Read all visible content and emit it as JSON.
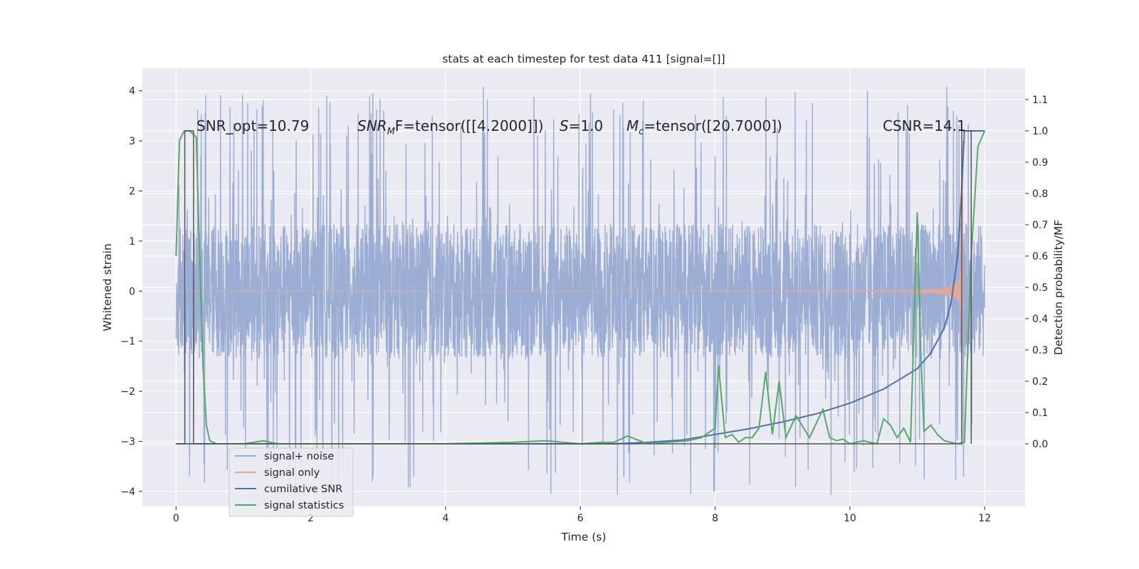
{
  "chart_data": {
    "type": "line",
    "title": "stats at each timestep for test data 411 [signal=[]]",
    "xlabel": "Time (s)",
    "ylabel": "Whitened strain",
    "ylabel_right": "Detection probability/MF",
    "xlim": [
      -0.5,
      12.6
    ],
    "ylim": [
      -4.3,
      4.45
    ],
    "ylim_right": [
      -0.2,
      1.2
    ],
    "x_ticks": [
      0,
      2,
      4,
      6,
      8,
      10,
      12
    ],
    "y_ticks": [
      -4,
      -3,
      -2,
      -1,
      0,
      1,
      2,
      3,
      4
    ],
    "y_ticks_right": [
      0.0,
      0.1,
      0.2,
      0.3,
      0.4,
      0.5,
      0.6,
      0.7,
      0.8,
      0.9,
      1.0,
      1.1
    ],
    "grid": true,
    "legend_position": "lower-left",
    "annotations": {
      "snr_opt": "SNR_opt=10.79",
      "snr_mf_label": "SNR",
      "snr_mf_sub": "M",
      "snr_mf_rest": "F=tensor([[4.2000]])",
      "s_label": "S",
      "s_rest": "=1.0",
      "mc_label": "M",
      "mc_sub": "c",
      "mc_rest": "=tensor([20.7000])",
      "csnr": "CSNR=14.1"
    },
    "series": [
      {
        "name": "signal+ noise",
        "color": "#97aad0",
        "axis": "left",
        "kind": "noise",
        "x_range": [
          0,
          12
        ],
        "typical_abs": 1.35,
        "peak_abs": 4.1
      },
      {
        "name": "signal only",
        "color": "#e1a99a",
        "axis": "left",
        "kind": "chirp",
        "x_range": [
          0,
          11.72
        ],
        "merger_time": 11.68,
        "peak": 3.1
      },
      {
        "name": "cumilative SNR",
        "color": "#4c72b0",
        "axis": "right",
        "x": [
          0,
          6.5,
          7,
          7.5,
          8,
          8.5,
          9,
          9.5,
          10,
          10.5,
          11,
          11.2,
          11.4,
          11.5,
          11.6,
          11.65,
          11.7,
          12
        ],
        "y": [
          0,
          0,
          0.005,
          0.012,
          0.03,
          0.048,
          0.07,
          0.096,
          0.13,
          0.175,
          0.24,
          0.29,
          0.37,
          0.45,
          0.6,
          0.78,
          1.0,
          1.0
        ]
      },
      {
        "name": "signal statistics",
        "color": "#55a868",
        "axis": "right",
        "x": [
          0,
          0.05,
          0.12,
          0.2,
          0.3,
          0.35,
          0.4,
          0.45,
          0.5,
          0.6,
          0.8,
          1.0,
          1.3,
          1.5,
          2.0,
          3.0,
          4.0,
          5.0,
          5.5,
          6.0,
          6.3,
          6.5,
          6.7,
          7.0,
          7.3,
          7.6,
          7.8,
          8.0,
          8.05,
          8.15,
          8.25,
          8.35,
          8.45,
          8.55,
          8.65,
          8.75,
          8.85,
          8.95,
          9.05,
          9.2,
          9.4,
          9.6,
          9.7,
          9.8,
          9.9,
          10.0,
          10.2,
          10.4,
          10.5,
          10.6,
          10.7,
          10.8,
          10.9,
          11.0,
          11.05,
          11.1,
          11.2,
          11.3,
          11.4,
          11.5,
          11.6,
          11.7,
          11.8,
          11.9,
          12.0
        ],
        "y": [
          0.6,
          0.97,
          1.0,
          1.0,
          0.98,
          0.6,
          0.25,
          0.06,
          0.01,
          0.0,
          0.0,
          0.0,
          0.01,
          0.0,
          0.0,
          0.0,
          0.0,
          0.005,
          0.01,
          0.0,
          0.005,
          0.005,
          0.025,
          0.0,
          0.005,
          0.01,
          0.02,
          0.05,
          0.25,
          0.02,
          0.03,
          0.005,
          0.02,
          0.02,
          0.05,
          0.23,
          0.03,
          0.2,
          0.02,
          0.09,
          0.02,
          0.11,
          0.02,
          0.01,
          0.015,
          0.0,
          0.01,
          0.0,
          0.08,
          0.06,
          0.02,
          0.05,
          0.005,
          0.74,
          0.3,
          0.04,
          0.06,
          0.03,
          0.01,
          0.005,
          0.0,
          0.005,
          0.6,
          0.95,
          1.0
        ]
      },
      {
        "name": "",
        "color": "#555555",
        "axis": "right",
        "kind": "boxcar",
        "x": [
          0,
          0.13,
          0.13,
          0.26,
          0.26,
          11.66,
          11.66,
          11.8,
          11.8
        ],
        "y": [
          0,
          0,
          1.0,
          1.0,
          0,
          0,
          1.0,
          1.0,
          0
        ]
      }
    ]
  }
}
